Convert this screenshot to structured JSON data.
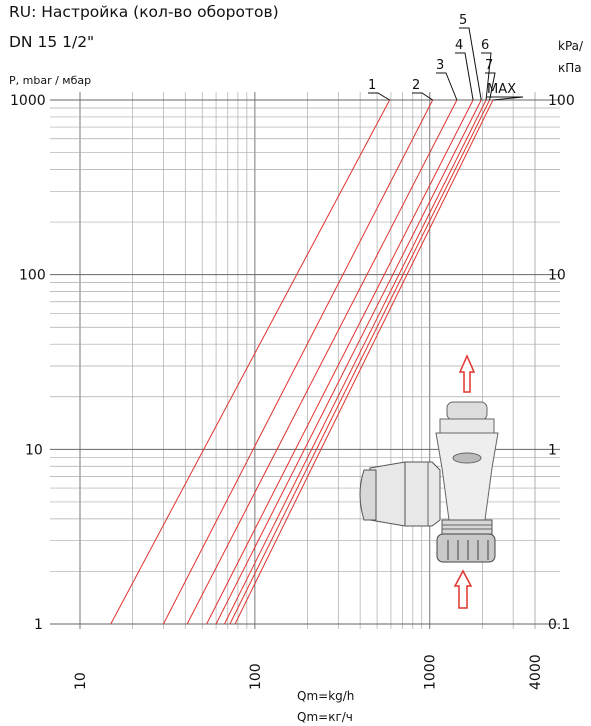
{
  "chart_data": {
    "type": "line",
    "title": "RU: Настройка (кол-во оборотов)",
    "subtitle": "DN 15 1/2\"",
    "ylabel": "P, mbar / мбар",
    "ylabel_right_line1": "kPa/",
    "ylabel_right_line2": "кПа",
    "xlabel_line1": "Qm=kg/h",
    "xlabel_line2": "Qm=кг/ч",
    "x_scale": "log",
    "y_scale": "log",
    "xlim": [
      10,
      4000
    ],
    "ylim": [
      1,
      1000
    ],
    "x_ticks": [
      "10",
      "100",
      "1000",
      "4000"
    ],
    "y_ticks_left": [
      "1",
      "10",
      "100",
      "1000"
    ],
    "y_ticks_right": [
      "0.1",
      "1",
      "10",
      "100"
    ],
    "grid": true,
    "series": [
      {
        "name": "1",
        "color": "#e0332e",
        "points": [
          [
            15,
            1
          ],
          [
            590,
            1000
          ]
        ]
      },
      {
        "name": "2",
        "color": "#e0332e",
        "points": [
          [
            30,
            1
          ],
          [
            1040,
            1000
          ]
        ]
      },
      {
        "name": "3",
        "color": "#e0332e",
        "points": [
          [
            41,
            1
          ],
          [
            1430,
            1000
          ]
        ]
      },
      {
        "name": "4",
        "color": "#e0332e",
        "points": [
          [
            53,
            1
          ],
          [
            1770,
            1000
          ]
        ]
      },
      {
        "name": "5",
        "color": "#e0332e",
        "points": [
          [
            60,
            1
          ],
          [
            1970,
            1000
          ]
        ]
      },
      {
        "name": "6",
        "color": "#e0332e",
        "points": [
          [
            67,
            1
          ],
          [
            2100,
            1000
          ]
        ]
      },
      {
        "name": "7",
        "color": "#e0332e",
        "points": [
          [
            72,
            1
          ],
          [
            2200,
            1000
          ]
        ]
      },
      {
        "name": "MAX",
        "color": "#e0332e",
        "points": [
          [
            77,
            1
          ],
          [
            2300,
            1000
          ]
        ]
      }
    ]
  },
  "illustration": {
    "name": "radiator-valve-icon",
    "arrow_color": "#e0332e"
  }
}
